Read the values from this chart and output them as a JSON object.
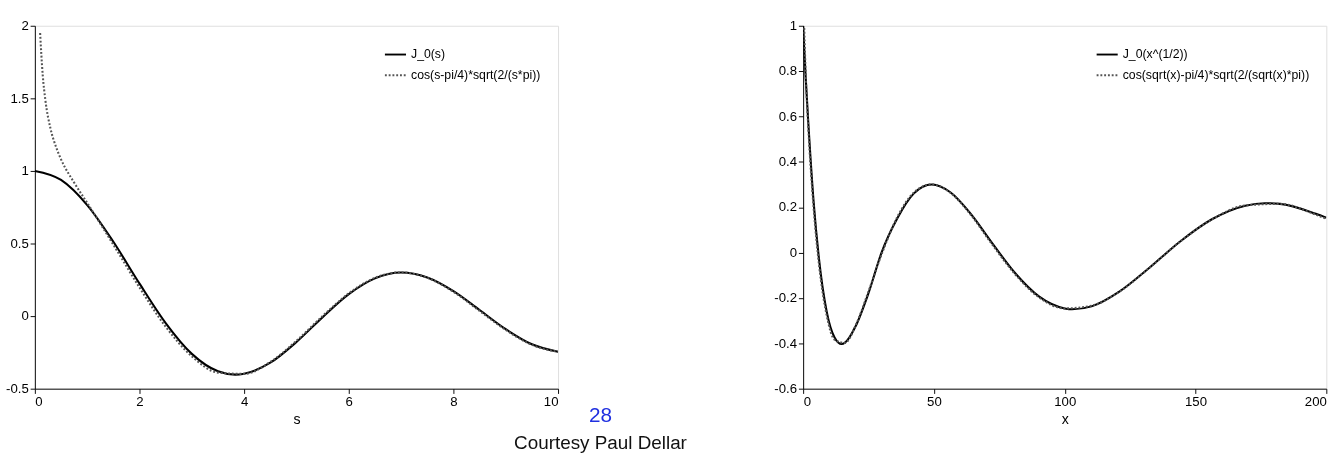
{
  "chart_data": [
    {
      "type": "line",
      "xlabel": "s",
      "xlim": [
        0,
        10
      ],
      "ylim": [
        -0.5,
        2
      ],
      "xticks": [
        0,
        2,
        4,
        6,
        8,
        10
      ],
      "yticks": [
        -0.5,
        0,
        0.5,
        1,
        1.5,
        2
      ],
      "grid": false,
      "legend": "top right",
      "annotations": [
        "28",
        "Courtesy Paul Dellar"
      ],
      "series": [
        {
          "name": "J_0(s)",
          "color": "#000000",
          "line_style": "solid",
          "x": [
            0,
            0.5,
            1,
            1.5,
            2,
            2.5,
            3,
            3.5,
            3.83,
            4,
            4.5,
            5,
            5.5,
            6,
            6.5,
            7,
            7.5,
            8,
            8.5,
            9,
            9.5,
            10
          ],
          "values": [
            1,
            0.938,
            0.765,
            0.512,
            0.224,
            -0.048,
            -0.26,
            -0.38,
            -0.403,
            -0.397,
            -0.321,
            -0.178,
            -0.007,
            0.151,
            0.26,
            0.3,
            0.266,
            0.172,
            0.042,
            -0.09,
            -0.194,
            -0.246
          ]
        },
        {
          "name": "cos(s-pi/4)*sqrt(2/(s*pi))",
          "color": "#555555",
          "line_style": "dotted",
          "x": [
            0.1,
            0.15,
            0.2,
            0.3,
            0.4,
            0.5,
            0.75,
            1,
            1.5,
            2,
            2.5,
            3,
            3.5,
            4,
            4.5,
            5,
            5.5,
            6,
            6.5,
            7,
            7.5,
            8,
            8.5,
            9,
            9.5,
            10
          ],
          "values": [
            1.95,
            1.66,
            1.49,
            1.29,
            1.17,
            1.08,
            0.92,
            0.78,
            0.492,
            0.197,
            -0.073,
            -0.277,
            -0.389,
            -0.398,
            -0.316,
            -0.17,
            0.001,
            0.157,
            0.264,
            0.301,
            0.264,
            0.168,
            0.036,
            -0.095,
            -0.198,
            -0.246
          ]
        }
      ]
    },
    {
      "type": "line",
      "xlabel": "x",
      "xlim": [
        0,
        200
      ],
      "ylim": [
        -0.6,
        1
      ],
      "xticks": [
        0,
        50,
        100,
        150,
        200
      ],
      "yticks": [
        -0.6,
        -0.4,
        -0.2,
        0,
        0.2,
        0.4,
        0.6,
        0.8,
        1
      ],
      "grid": false,
      "legend": "top right",
      "series": [
        {
          "name": "J_0(x^(1/2))",
          "color": "#000000",
          "line_style": "solid",
          "x": [
            0,
            0.25,
            0.5,
            1,
            2,
            4,
            6,
            9,
            12,
            14.7,
            16,
            20,
            25,
            30,
            36,
            42.25,
            49.2,
            56.25,
            64,
            72.25,
            81,
            90.25,
            100,
            102.8,
            110.25,
            121,
            132.25,
            144,
            156.25,
            169,
            176.5,
            182.25,
            196,
            200
          ],
          "values": [
            1,
            0.938,
            0.878,
            0.765,
            0.567,
            0.224,
            -0.022,
            -0.26,
            -0.374,
            -0.403,
            -0.397,
            -0.326,
            -0.178,
            0.001,
            0.151,
            0.26,
            0.3,
            0.266,
            0.172,
            0.042,
            -0.09,
            -0.194,
            -0.246,
            -0.25,
            -0.237,
            -0.171,
            -0.068,
            0.048,
            0.147,
            0.207,
            0.218,
            0.215,
            0.171,
            0.154
          ]
        },
        {
          "name": "cos(sqrt(x)-pi/4)*sqrt(2/(sqrt(x)*pi))",
          "color": "#555555",
          "line_style": "dotted",
          "x": [
            0.4,
            1,
            2,
            4,
            6,
            9,
            12,
            16,
            20,
            25,
            30,
            36,
            42.25,
            49.2,
            56.25,
            64,
            72.25,
            81,
            90.25,
            100,
            110.25,
            121,
            132.25,
            144,
            156.25,
            169,
            182.25,
            196,
            200
          ],
          "values": [
            0.99,
            0.78,
            0.543,
            0.197,
            -0.047,
            -0.277,
            -0.384,
            -0.398,
            -0.323,
            -0.17,
            -0.007,
            0.157,
            0.264,
            0.301,
            0.264,
            0.168,
            0.036,
            -0.095,
            -0.198,
            -0.246,
            -0.234,
            -0.171,
            -0.068,
            0.048,
            0.146,
            0.208,
            0.215,
            0.167,
            0.149
          ]
        }
      ]
    }
  ]
}
